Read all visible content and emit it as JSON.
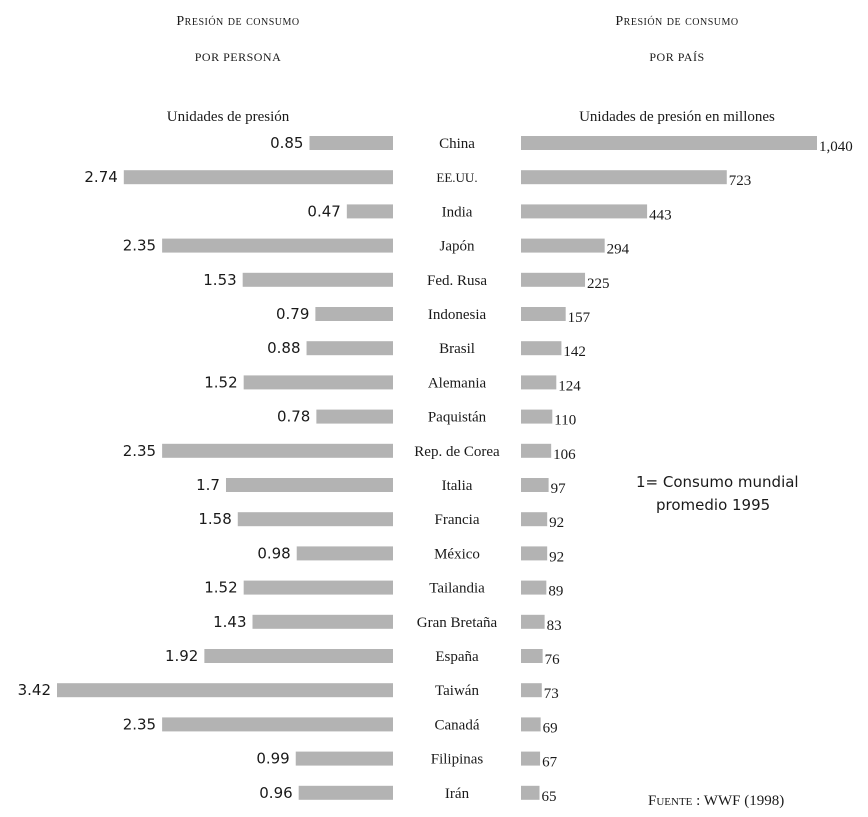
{
  "left_panel": {
    "title_line1": "Presión de consumo",
    "title_line2": "por persona",
    "axis_label": "Unidades de presión"
  },
  "right_panel": {
    "title_line1": "Presión de consumo",
    "title_line2": "por país",
    "axis_label": "Unidades de presión en millones"
  },
  "note": {
    "line1": "1= Consumo mundial",
    "line2": "promedio 1995"
  },
  "source": {
    "prefix": "Fuente",
    "text": " : WWF (1998)"
  },
  "colors": {
    "bar": "#b3b3b3",
    "text": "#1a1a1a"
  },
  "chart_data": [
    {
      "type": "bar",
      "orientation": "horizontal",
      "direction": "leftward",
      "title": "Presión de consumo por persona",
      "xlabel": "Unidades de presión",
      "categories": [
        "China",
        "EE.UU.",
        "India",
        "Japón",
        "Fed. Rusa",
        "Indonesia",
        "Brasil",
        "Alemania",
        "Paquistán",
        "Rep. de Corea",
        "Italia",
        "Francia",
        "México",
        "Tailandia",
        "Gran Bretaña",
        "España",
        "Taiwán",
        "Canadá",
        "Filipinas",
        "Irán"
      ],
      "values": [
        0.85,
        2.74,
        0.47,
        2.35,
        1.53,
        0.79,
        0.88,
        1.52,
        0.78,
        2.35,
        1.7,
        1.58,
        0.98,
        1.52,
        1.43,
        1.92,
        3.42,
        2.35,
        0.99,
        0.96
      ],
      "labels": [
        "0.85",
        "2.74",
        "0.47",
        "2.35",
        "1.53",
        "0.79",
        "0.88",
        "1.52",
        "0.78",
        "2.35",
        "1.7",
        "1.58",
        "0.98",
        "1.52",
        "1.43",
        "1.92",
        "3.42",
        "2.35",
        "0.99",
        "0.96"
      ],
      "xlim": [
        0,
        3.42
      ]
    },
    {
      "type": "bar",
      "orientation": "horizontal",
      "direction": "rightward",
      "title": "Presión de consumo por país",
      "xlabel": "Unidades de presión en millones",
      "categories": [
        "China",
        "EE.UU.",
        "India",
        "Japón",
        "Fed. Rusa",
        "Indonesia",
        "Brasil",
        "Alemania",
        "Paquistán",
        "Rep. de Corea",
        "Italia",
        "Francia",
        "México",
        "Tailandia",
        "Gran Bretaña",
        "España",
        "Taiwán",
        "Canadá",
        "Filipinas",
        "Irán"
      ],
      "values": [
        1040,
        723,
        443,
        294,
        225,
        157,
        142,
        124,
        110,
        106,
        97,
        92,
        92,
        89,
        83,
        76,
        73,
        69,
        67,
        65
      ],
      "labels": [
        "1,040",
        "723",
        "443",
        "294",
        "225",
        "157",
        "142",
        "124",
        "110",
        "106",
        "97",
        "92",
        "92",
        "89",
        "83",
        "76",
        "73",
        "69",
        "67",
        "65"
      ],
      "xlim": [
        0,
        1040
      ]
    }
  ]
}
